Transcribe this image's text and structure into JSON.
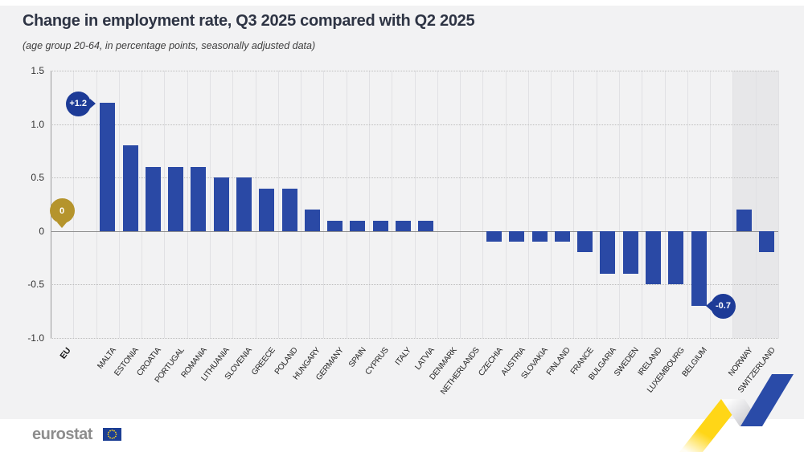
{
  "title": "Change in employment rate, Q3 2025 compared with Q2 2025",
  "subtitle": "(age group 20-64, in percentage points, seasonally adjusted data)",
  "footer": {
    "brand": "eurostat"
  },
  "chart_data": {
    "type": "bar",
    "title": "Change in employment rate, Q3 2025 compared with Q2 2025",
    "subtitle": "(age group 20-64, in percentage points, seasonally adjusted data)",
    "unit": "percentage points",
    "xlabel": "",
    "ylabel": "",
    "ylim": [
      -1.0,
      1.5
    ],
    "ytick_labels": [
      "1.5",
      "1.0",
      "0.5",
      "0",
      "-0.5",
      "-1.0"
    ],
    "grid": {
      "horizontal": "dotted",
      "zero_line": "solid",
      "vertical": "column-separators"
    },
    "legend": null,
    "bars": [
      {
        "label": "EU",
        "value": 0,
        "group": "eu"
      },
      {
        "label": "MALTA",
        "value": 1.2,
        "group": "member_state"
      },
      {
        "label": "ESTONIA",
        "value": 0.8,
        "group": "member_state"
      },
      {
        "label": "CROATIA",
        "value": 0.6,
        "group": "member_state"
      },
      {
        "label": "PORTUGAL",
        "value": 0.6,
        "group": "member_state"
      },
      {
        "label": "ROMANIA",
        "value": 0.6,
        "group": "member_state"
      },
      {
        "label": "LITHUANIA",
        "value": 0.5,
        "group": "member_state"
      },
      {
        "label": "SLOVENIA",
        "value": 0.5,
        "group": "member_state"
      },
      {
        "label": "GREECE",
        "value": 0.4,
        "group": "member_state"
      },
      {
        "label": "POLAND",
        "value": 0.4,
        "group": "member_state"
      },
      {
        "label": "HUNGARY",
        "value": 0.2,
        "group": "member_state"
      },
      {
        "label": "GERMANY",
        "value": 0.1,
        "group": "member_state"
      },
      {
        "label": "SPAIN",
        "value": 0.1,
        "group": "member_state"
      },
      {
        "label": "CYPRUS",
        "value": 0.1,
        "group": "member_state"
      },
      {
        "label": "ITALY",
        "value": 0.1,
        "group": "member_state"
      },
      {
        "label": "LATVIA",
        "value": 0.1,
        "group": "member_state"
      },
      {
        "label": "DENMARK",
        "value": 0,
        "group": "member_state"
      },
      {
        "label": "NETHERLANDS",
        "value": 0,
        "group": "member_state"
      },
      {
        "label": "CZECHIA",
        "value": -0.1,
        "group": "member_state"
      },
      {
        "label": "AUSTRIA",
        "value": -0.1,
        "group": "member_state"
      },
      {
        "label": "SLOVAKIA",
        "value": -0.1,
        "group": "member_state"
      },
      {
        "label": "FINLAND",
        "value": -0.1,
        "group": "member_state"
      },
      {
        "label": "FRANCE",
        "value": -0.2,
        "group": "member_state"
      },
      {
        "label": "BULGARIA",
        "value": -0.4,
        "group": "member_state"
      },
      {
        "label": "SWEDEN",
        "value": -0.4,
        "group": "member_state"
      },
      {
        "label": "IRELAND",
        "value": -0.5,
        "group": "member_state"
      },
      {
        "label": "LUXEMBOURG",
        "value": -0.5,
        "group": "member_state"
      },
      {
        "label": "BELGIUM",
        "value": -0.7,
        "group": "member_state"
      },
      {
        "label": "NORWAY",
        "value": 0.2,
        "group": "efta"
      },
      {
        "label": "SWITZERLAND",
        "value": -0.2,
        "group": "efta"
      }
    ],
    "annotations": [
      {
        "text": "0",
        "target": "EU",
        "style": "gold",
        "placement": "above"
      },
      {
        "text": "+1.2",
        "target": "MALTA",
        "style": "blue",
        "placement": "left"
      },
      {
        "text": "-0.7",
        "target": "BELGIUM",
        "style": "blue",
        "placement": "right"
      }
    ],
    "colors": {
      "bar": "#2a49a5",
      "annotation_blue": "#1d3b97",
      "annotation_gold": "#b5942c",
      "efta_band": "#e7e7e9",
      "background": "#f2f2f3"
    }
  }
}
